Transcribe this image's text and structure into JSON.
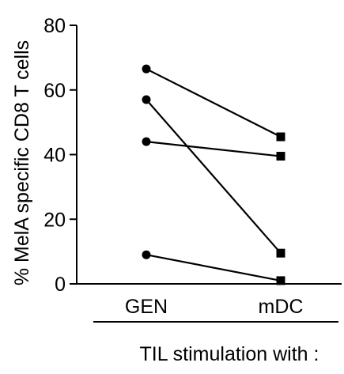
{
  "chart_data": {
    "type": "line",
    "title": "",
    "ylabel": "% MelA specific CD8 T cells",
    "xlabel": "TIL stimulation with :",
    "categories": [
      "GEN",
      "mDC"
    ],
    "ylim": [
      0,
      80
    ],
    "yticks": [
      "0",
      "20",
      "40",
      "60",
      "80"
    ],
    "grid": false,
    "legend": "none",
    "marker_by_category": [
      "circle",
      "square"
    ],
    "series": [
      {
        "values": [
          66.5,
          45.5
        ]
      },
      {
        "values": [
          57,
          9.5
        ]
      },
      {
        "values": [
          44,
          39.5
        ]
      },
      {
        "values": [
          9,
          1
        ]
      }
    ],
    "colors": {
      "line": "#000000",
      "marker": "#000000",
      "text": "#000000"
    }
  }
}
